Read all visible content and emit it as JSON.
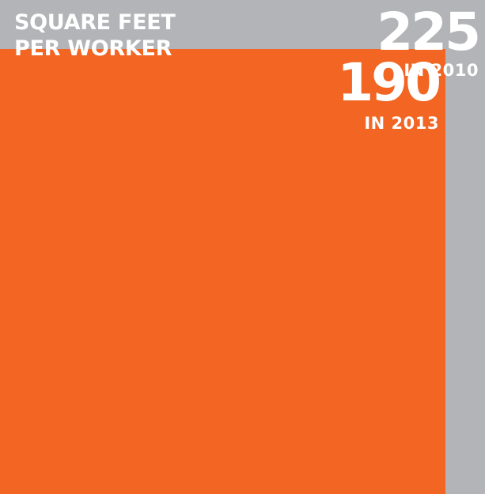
{
  "title_lines": [
    "SQUARE FEET",
    "PER WORKER"
  ],
  "chart_data": {
    "type": "area",
    "title": "SQUARE FEET PER WORKER",
    "series": [
      {
        "value": 225,
        "value_text": "225",
        "label": "IN 2010",
        "color": "#B3B4B7"
      },
      {
        "value": 190,
        "value_text": "190",
        "label": "IN 2013",
        "color": "#F26522"
      }
    ]
  },
  "colors": {
    "background": "#FFFFFF",
    "text": "#FFFFFF"
  }
}
